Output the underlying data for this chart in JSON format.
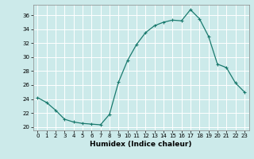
{
  "xlabel": "Humidex (Indice chaleur)",
  "ylabel": "",
  "background_color": "#cceaea",
  "line_color": "#1a7a6e",
  "marker": "+",
  "xlim": [
    -0.5,
    23.5
  ],
  "ylim": [
    19.5,
    37.5
  ],
  "yticks": [
    20,
    22,
    24,
    26,
    28,
    30,
    32,
    34,
    36
  ],
  "xticks": [
    0,
    1,
    2,
    3,
    4,
    5,
    6,
    7,
    8,
    9,
    10,
    11,
    12,
    13,
    14,
    15,
    16,
    17,
    18,
    19,
    20,
    21,
    22,
    23
  ],
  "hours": [
    0,
    1,
    2,
    3,
    4,
    5,
    6,
    7,
    8,
    9,
    10,
    11,
    12,
    13,
    14,
    15,
    16,
    17,
    18,
    19,
    20,
    21,
    22,
    23
  ],
  "values": [
    24.2,
    23.5,
    22.4,
    21.1,
    20.7,
    20.5,
    20.4,
    20.3,
    21.8,
    26.4,
    29.5,
    31.8,
    33.5,
    34.5,
    35.0,
    35.3,
    35.2,
    36.8,
    35.5,
    33.0,
    29.0,
    28.5,
    26.3,
    25.0
  ]
}
